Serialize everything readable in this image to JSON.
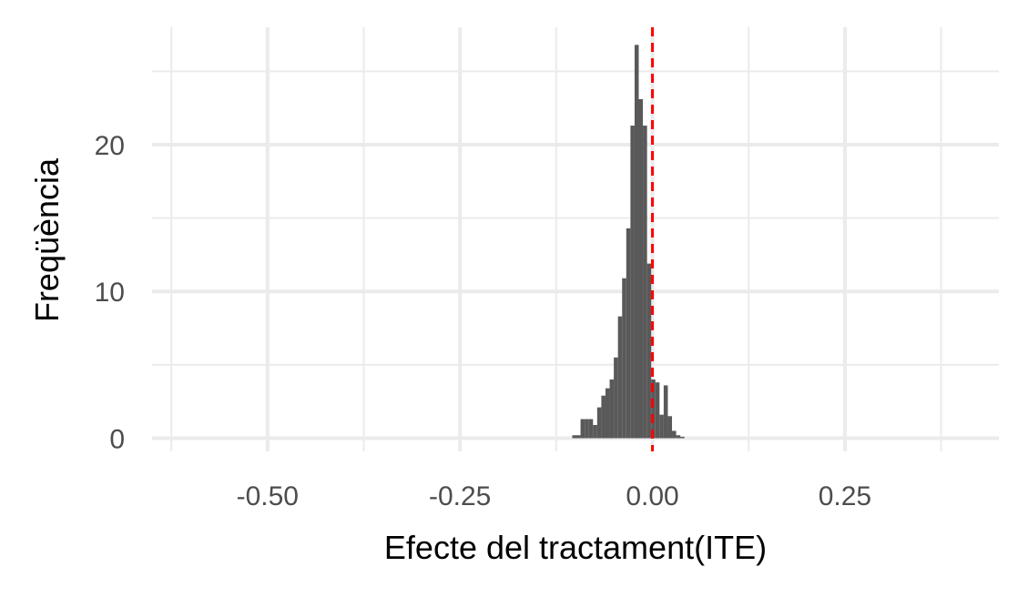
{
  "chart_data": {
    "type": "bar",
    "xlabel": "Efecte del tractament(ITE)",
    "ylabel": "Freqüència",
    "xlim": [
      -0.65,
      0.45
    ],
    "ylim": [
      -0.9,
      28
    ],
    "x_ticks": [
      {
        "value": -0.5,
        "label": "-0.50"
      },
      {
        "value": -0.25,
        "label": "-0.25"
      },
      {
        "value": 0.0,
        "label": "0.00"
      },
      {
        "value": 0.25,
        "label": "0.25"
      }
    ],
    "x_minor_ticks": [
      -0.625,
      -0.375,
      -0.125,
      0.125,
      0.375
    ],
    "y_ticks": [
      {
        "value": 0,
        "label": "0"
      },
      {
        "value": 10,
        "label": "10"
      },
      {
        "value": 20,
        "label": "20"
      }
    ],
    "y_minor_ticks": [
      5,
      15,
      25
    ],
    "grid": true,
    "bin_width": 0.0054,
    "bins": [
      {
        "x": -0.1015,
        "count": 0.2
      },
      {
        "x": -0.0961,
        "count": 0.2
      },
      {
        "x": -0.0907,
        "count": 1.3
      },
      {
        "x": -0.0853,
        "count": 1.3
      },
      {
        "x": -0.0799,
        "count": 1.3
      },
      {
        "x": -0.0745,
        "count": 0.9
      },
      {
        "x": -0.0691,
        "count": 2.1
      },
      {
        "x": -0.0637,
        "count": 2.9
      },
      {
        "x": -0.0583,
        "count": 3.4
      },
      {
        "x": -0.0529,
        "count": 4.0
      },
      {
        "x": -0.0475,
        "count": 5.5
      },
      {
        "x": -0.0421,
        "count": 8.3
      },
      {
        "x": -0.0367,
        "count": 10.9
      },
      {
        "x": -0.0313,
        "count": 14.3
      },
      {
        "x": -0.0259,
        "count": 21.3
      },
      {
        "x": -0.0205,
        "count": 26.8
      },
      {
        "x": -0.0151,
        "count": 23.1
      },
      {
        "x": -0.0097,
        "count": 21.3
      },
      {
        "x": -0.0043,
        "count": 11.9
      },
      {
        "x": 0.0011,
        "count": 4.0
      },
      {
        "x": 0.0065,
        "count": 3.8
      },
      {
        "x": 0.0119,
        "count": 1.6
      },
      {
        "x": 0.0173,
        "count": 3.6
      },
      {
        "x": 0.0227,
        "count": 1.5
      },
      {
        "x": 0.0281,
        "count": 0.5
      },
      {
        "x": 0.0335,
        "count": 0.2
      },
      {
        "x": 0.0389,
        "count": 0.1
      }
    ],
    "bar_color": "#595959",
    "reference_line": {
      "x": 0.0,
      "color": "#ff0000",
      "style": "dashed"
    }
  }
}
